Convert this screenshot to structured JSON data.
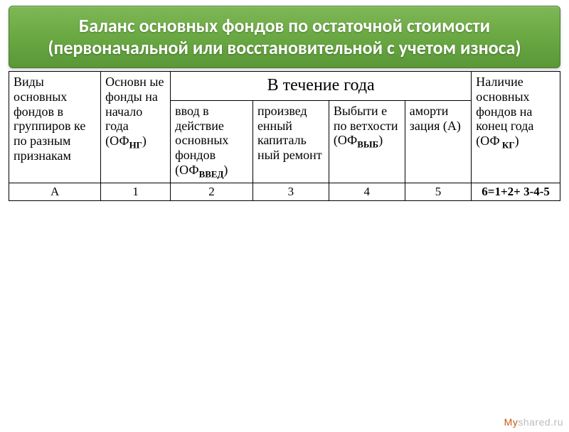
{
  "header": {
    "title": "Баланс основных фондов по остаточной стоимости (первоначальной или восстановительной с учетом износа)"
  },
  "table": {
    "colA": "Виды основных фондов в группиров ке   по разным признакам",
    "col1_pre": "Основн ые фонды на начало года (ОФ",
    "col1_sub": "НГ",
    "col1_post": ")",
    "group_header": "В течение года",
    "col2_pre": "ввод в действие основных фондов (ОФ",
    "col2_sub": "ВВЕД",
    "col2_post": ")",
    "col3": "произвед енный капиталь ный ремонт",
    "col4_pre": "Выбыти е по ветхости (ОФ",
    "col4_sub": "ВЫБ",
    "col4_post": ")",
    "col5": "аморти зация (А)",
    "col6_pre": "Наличие основных фондов на конец года (ОФ",
    "col6_sub": " КГ",
    "col6_post": ")",
    "numA": "А",
    "num1": "1",
    "num2": "2",
    "num3": "3",
    "num4": "4",
    "num5": "5",
    "num6": "6=1+2+ 3-4-5"
  },
  "watermark": {
    "brand": "My",
    "domain": "shared.ru"
  },
  "colors": {
    "banner_top": "#7fb856",
    "banner_bottom": "#5a9838",
    "banner_border": "#4a7830",
    "text_white": "#ffffff",
    "table_border": "#000000",
    "wm_brand": "#c75a14",
    "wm_domain": "#bcbcbc",
    "background": "#ffffff"
  }
}
